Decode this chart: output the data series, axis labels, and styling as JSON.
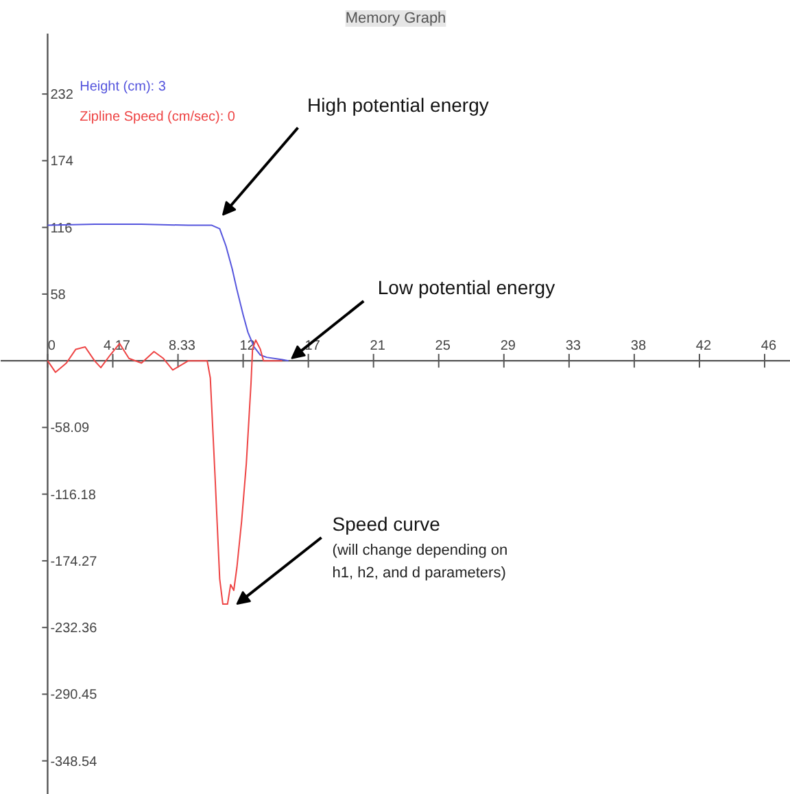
{
  "chart_data": {
    "type": "line",
    "title": "Memory Graph",
    "xlim": [
      -3,
      47.5
    ],
    "ylim": [
      -378,
      285
    ],
    "xticks": [
      0,
      {
        "value": 4.1667,
        "label": "4.17"
      },
      {
        "value": 8.3333,
        "label": "8.33"
      },
      {
        "value": 12.5,
        "label": "12"
      },
      {
        "value": 16.667,
        "label": "17"
      },
      {
        "value": 20.833,
        "label": "21"
      },
      25,
      {
        "value": 29.167,
        "label": "29"
      },
      {
        "value": 33.333,
        "label": "33"
      },
      {
        "value": 37.5,
        "label": "38"
      },
      {
        "value": 41.667,
        "label": "42"
      },
      {
        "value": 45.833,
        "label": "46"
      }
    ],
    "yticks": [
      {
        "value": 232.36,
        "label": "232"
      },
      {
        "value": 174.27,
        "label": "174"
      },
      {
        "value": 116.18,
        "label": "116"
      },
      {
        "value": 58.09,
        "label": "58"
      },
      -58.09,
      -116.18,
      -174.27,
      -232.36,
      -290.45,
      -348.54
    ],
    "grid": false,
    "legend": "top left",
    "series": [
      {
        "name": "Height (cm): 3",
        "color": "#5555dd",
        "x": [
          0,
          3,
          6,
          9,
          10.5,
          11,
          11.4,
          11.8,
          12.1,
          12.5,
          12.8,
          13.2,
          13.6,
          14,
          15,
          15.4
        ],
        "values": [
          118,
          119,
          119,
          118,
          118,
          115,
          100,
          80,
          62,
          40,
          25,
          12,
          5,
          3,
          1,
          0
        ]
      },
      {
        "name": "Zipline Speed (cm/sec): 0",
        "color": "#ee4444",
        "x": [
          0,
          0.5,
          1.2,
          1.8,
          2.4,
          3.0,
          3.4,
          4.0,
          4.6,
          5.2,
          6,
          6.8,
          7.4,
          8.0,
          8.5,
          9,
          10.2,
          10.4,
          10.7,
          11.0,
          11.2,
          11.5,
          11.7,
          11.9,
          12.1,
          12.4,
          12.7,
          13.0,
          13.1,
          13.3,
          13.6,
          13.8,
          15
        ],
        "values": [
          0,
          -10,
          -2,
          10,
          12,
          0,
          -6,
          5,
          15,
          2,
          -2,
          8,
          2,
          -8,
          -4,
          0,
          0,
          -15,
          -100,
          -190,
          -212,
          -212,
          -195,
          -200,
          -180,
          -140,
          -90,
          -20,
          10,
          18,
          10,
          0,
          0
        ]
      }
    ],
    "annotations": [
      {
        "text": "High potential energy",
        "x": 11,
        "y": 118
      },
      {
        "text": "Low potential energy",
        "x": 15.5,
        "y": 0
      },
      {
        "text": "Speed curve",
        "x": 11.5,
        "y": -212
      },
      "(will change depending on h1, h2, and d parameters)"
    ]
  }
}
